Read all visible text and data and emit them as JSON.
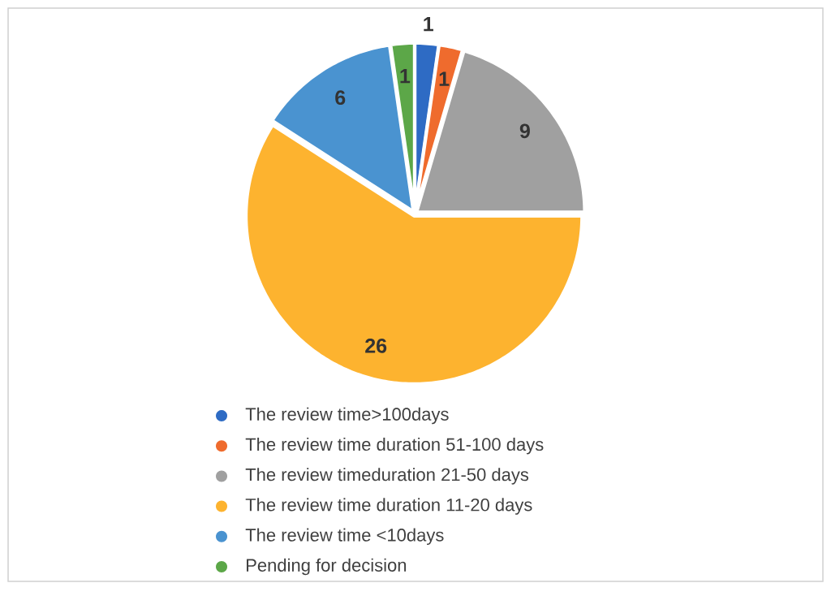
{
  "chart_data": {
    "type": "pie",
    "categories": [
      "The review time>100days",
      "The review time duration 51-100 days",
      "The review timeduration 21-50 days",
      "The review time duration 11-20 days",
      "The review time <10days",
      "Pending for decision"
    ],
    "values": [
      1,
      1,
      9,
      26,
      6,
      1
    ],
    "colors": [
      "#2e6bc4",
      "#ef6b2d",
      "#a0a0a0",
      "#fdb32f",
      "#4a93d0",
      "#5ca748"
    ],
    "data_labels": true,
    "legend": "bottom"
  }
}
